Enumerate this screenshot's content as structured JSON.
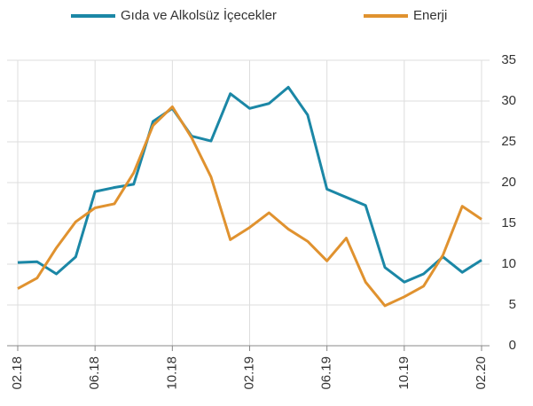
{
  "chart_data": {
    "type": "line",
    "categories": [
      "02.18",
      null,
      null,
      null,
      "06.18",
      null,
      null,
      null,
      "10.18",
      null,
      null,
      null,
      "02.19",
      null,
      null,
      null,
      "06.19",
      null,
      null,
      null,
      "10.19",
      null,
      null,
      null,
      "02.20"
    ],
    "series": [
      {
        "name": "Gıda ve Alkolsüz İçecekler",
        "color": "#1b87a6",
        "values": [
          10.2,
          10.3,
          8.8,
          10.9,
          18.9,
          19.4,
          19.8,
          27.5,
          29.1,
          25.7,
          25.1,
          30.9,
          29.1,
          29.7,
          31.7,
          28.3,
          19.2,
          18.2,
          17.2,
          9.6,
          7.8,
          8.8,
          10.9,
          9.0,
          10.5
        ]
      },
      {
        "name": "Enerji",
        "color": "#e0922f",
        "values": [
          7.0,
          8.3,
          12.0,
          15.2,
          16.9,
          17.4,
          21.2,
          27.0,
          29.3,
          25.5,
          20.7,
          13.0,
          14.5,
          16.3,
          14.3,
          12.8,
          10.4,
          13.2,
          7.8,
          4.9,
          6.0,
          7.3,
          11.1,
          17.1,
          15.5
        ]
      }
    ],
    "ylim": [
      0,
      35
    ],
    "yticks": [
      0,
      5,
      10,
      15,
      20,
      25,
      30,
      35
    ],
    "grid": true,
    "legend": "top"
  }
}
